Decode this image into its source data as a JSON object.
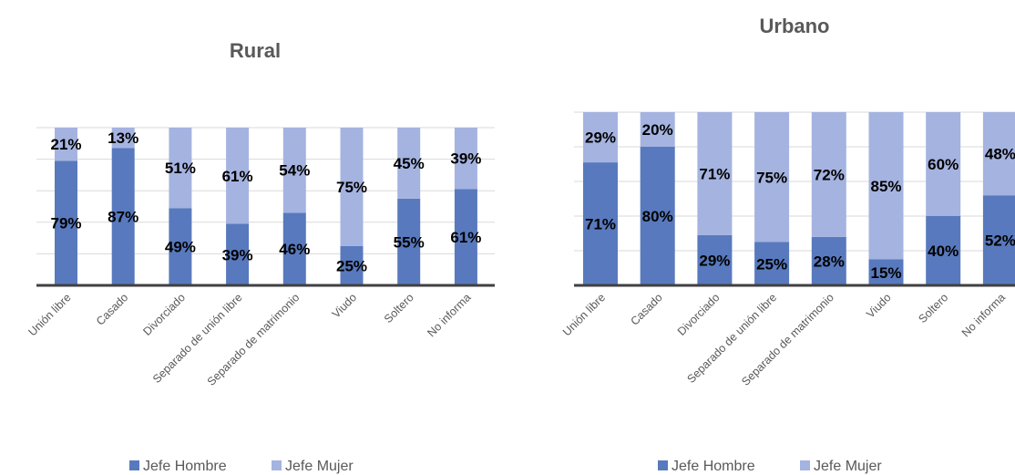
{
  "colors": {
    "jefe_hombre": "#5879bd",
    "jefe_mujer": "#a5b3e0"
  },
  "legend": {
    "jefe_hombre": "Jefe Hombre",
    "jefe_mujer": "Jefe Mujer"
  },
  "chart_data": [
    {
      "type": "bar",
      "stacked": true,
      "percent": true,
      "title": "Rural",
      "categories": [
        "Unión libre",
        "Casado",
        "Divorciado",
        "Separado de unión libre",
        "Separado de matrimonio",
        "Viudo",
        "Soltero",
        "No informa"
      ],
      "series": [
        {
          "name": "Jefe Hombre",
          "values": [
            79,
            87,
            49,
            39,
            46,
            25,
            55,
            61
          ]
        },
        {
          "name": "Jefe Mujer",
          "values": [
            21,
            13,
            51,
            61,
            54,
            75,
            45,
            39
          ]
        }
      ],
      "ylim": [
        0,
        100
      ],
      "grid": true,
      "legend_position": "bottom"
    },
    {
      "type": "bar",
      "stacked": true,
      "percent": true,
      "title": "Urbano",
      "categories": [
        "Unión libre",
        "Casado",
        "Divorciado",
        "Separado de unión libre",
        "Separado de matrimonio",
        "Viudo",
        "Soltero",
        "No informa"
      ],
      "series": [
        {
          "name": "Jefe Hombre",
          "values": [
            71,
            80,
            29,
            25,
            28,
            15,
            40,
            52
          ]
        },
        {
          "name": "Jefe Mujer",
          "values": [
            29,
            20,
            71,
            75,
            72,
            85,
            60,
            48
          ]
        }
      ],
      "ylim": [
        0,
        100
      ],
      "grid": true,
      "legend_position": "bottom"
    }
  ]
}
